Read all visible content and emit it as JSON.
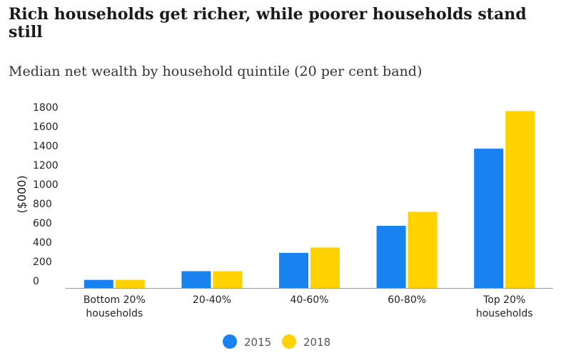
{
  "header": {
    "title": "Rich households get richer, while poorer households stand still",
    "subtitle": "Median net wealth by household quintile (20 per cent band)"
  },
  "colors": {
    "series_2015": "#1a82f0",
    "series_2018": "#ffd200",
    "axis": "#999999"
  },
  "chart_data": {
    "type": "bar",
    "title": "Rich households get richer, while poorer households stand still",
    "subtitle": "Median net wealth by household quintile (20 per cent band)",
    "xlabel": "",
    "ylabel": "($000)",
    "ylim": [
      0,
      1800
    ],
    "yticks": [
      0,
      200,
      400,
      600,
      800,
      1000,
      1200,
      1400,
      1600,
      1800
    ],
    "grid": false,
    "legend_position": "bottom",
    "categories": [
      [
        "Bottom 20%",
        "households"
      ],
      [
        "20-40%"
      ],
      [
        "40-60%"
      ],
      [
        "60-80%"
      ],
      [
        "Top 20%",
        "households"
      ]
    ],
    "series": [
      {
        "name": "2015",
        "color": "#1a82f0",
        "values": [
          10,
          100,
          290,
          570,
          1370
        ]
      },
      {
        "name": "2018",
        "color": "#ffd200",
        "values": [
          10,
          100,
          345,
          715,
          1760
        ]
      }
    ]
  }
}
